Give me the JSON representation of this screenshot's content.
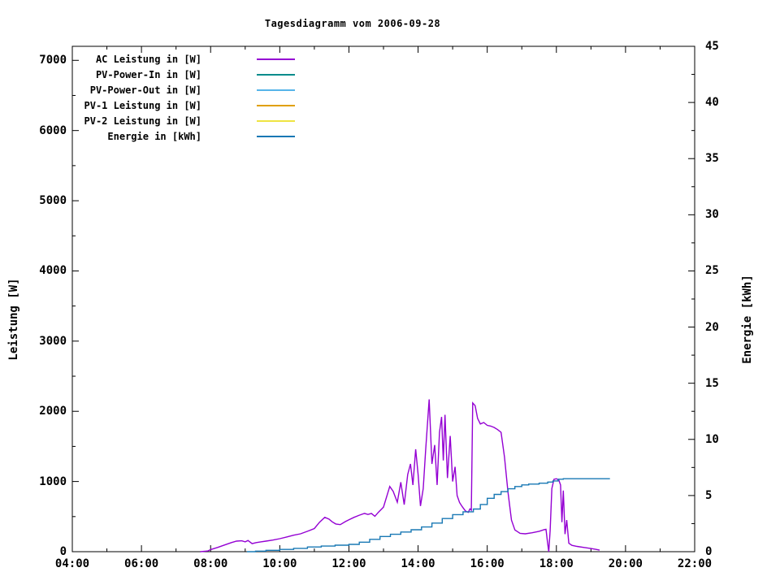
{
  "title": "Tagesdiagramm vom 2006-09-28",
  "colors": {
    "background": "#ffffff",
    "foreground": "#000000",
    "ac_leistung": "#9400d3",
    "pv_power_in": "#008b8b",
    "pv_power_out": "#56b4e9",
    "pv1_leistung": "#e0a000",
    "pv2_leistung": "#efe442",
    "energie": "#1878b4"
  },
  "chart_data": {
    "type": "line",
    "title": "Tagesdiagramm vom 2006-09-28",
    "xlabel": "",
    "ylabel": "Leistung [W]",
    "y2label": "Energie [kWh]",
    "xlim_hours": [
      4,
      22
    ],
    "ylim": [
      0,
      7200
    ],
    "y2lim": [
      0,
      45
    ],
    "grid": false,
    "legend_position": "inside top-left",
    "x_major_ticks": [
      {
        "h": 4,
        "label": "04:00"
      },
      {
        "h": 6,
        "label": "06:00"
      },
      {
        "h": 8,
        "label": "08:00"
      },
      {
        "h": 10,
        "label": "10:00"
      },
      {
        "h": 12,
        "label": "12:00"
      },
      {
        "h": 14,
        "label": "14:00"
      },
      {
        "h": 16,
        "label": "16:00"
      },
      {
        "h": 18,
        "label": "18:00"
      },
      {
        "h": 20,
        "label": "20:00"
      },
      {
        "h": 22,
        "label": "22:00"
      }
    ],
    "x_minor_ticks_hours": [
      5,
      7,
      9,
      11,
      13,
      15,
      17,
      19,
      21
    ],
    "y_major_ticks": [
      {
        "v": 0,
        "label": "0"
      },
      {
        "v": 1000,
        "label": "1000"
      },
      {
        "v": 2000,
        "label": "2000"
      },
      {
        "v": 3000,
        "label": "3000"
      },
      {
        "v": 4000,
        "label": "4000"
      },
      {
        "v": 5000,
        "label": "5000"
      },
      {
        "v": 6000,
        "label": "6000"
      },
      {
        "v": 7000,
        "label": "7000"
      }
    ],
    "y_minor_ticks": [
      500,
      1500,
      2500,
      3500,
      4500,
      5500,
      6500
    ],
    "y2_major_ticks": [
      {
        "v": 0,
        "label": "0"
      },
      {
        "v": 5,
        "label": "5"
      },
      {
        "v": 10,
        "label": "10"
      },
      {
        "v": 15,
        "label": "15"
      },
      {
        "v": 20,
        "label": "20"
      },
      {
        "v": 25,
        "label": "25"
      },
      {
        "v": 30,
        "label": "30"
      },
      {
        "v": 35,
        "label": "35"
      },
      {
        "v": 40,
        "label": "40"
      },
      {
        "v": 45,
        "label": "45"
      }
    ],
    "y2_minor_ticks": [
      2.5,
      7.5,
      12.5,
      17.5,
      22.5,
      27.5,
      32.5,
      37.5,
      42.5
    ],
    "series": [
      {
        "name": "AC Leistung in [W]",
        "color": "#9400d3",
        "axis": "y1",
        "style": "line",
        "visible_in_plot": true,
        "points": [
          [
            7.7,
            0
          ],
          [
            7.92,
            10
          ],
          [
            8.0,
            30
          ],
          [
            8.2,
            60
          ],
          [
            8.4,
            95
          ],
          [
            8.6,
            130
          ],
          [
            8.75,
            150
          ],
          [
            8.9,
            155
          ],
          [
            9.0,
            140
          ],
          [
            9.08,
            160
          ],
          [
            9.2,
            115
          ],
          [
            9.32,
            130
          ],
          [
            9.45,
            140
          ],
          [
            9.6,
            150
          ],
          [
            9.8,
            165
          ],
          [
            10.0,
            185
          ],
          [
            10.2,
            210
          ],
          [
            10.4,
            235
          ],
          [
            10.6,
            255
          ],
          [
            10.8,
            290
          ],
          [
            11.0,
            330
          ],
          [
            11.15,
            420
          ],
          [
            11.3,
            490
          ],
          [
            11.42,
            465
          ],
          [
            11.52,
            425
          ],
          [
            11.62,
            395
          ],
          [
            11.75,
            385
          ],
          [
            11.9,
            430
          ],
          [
            12.0,
            455
          ],
          [
            12.15,
            490
          ],
          [
            12.3,
            520
          ],
          [
            12.45,
            545
          ],
          [
            12.55,
            530
          ],
          [
            12.65,
            545
          ],
          [
            12.75,
            505
          ],
          [
            12.85,
            560
          ],
          [
            13.0,
            635
          ],
          [
            13.1,
            800
          ],
          [
            13.18,
            930
          ],
          [
            13.28,
            860
          ],
          [
            13.4,
            705
          ],
          [
            13.5,
            990
          ],
          [
            13.6,
            670
          ],
          [
            13.7,
            1100
          ],
          [
            13.78,
            1250
          ],
          [
            13.85,
            950
          ],
          [
            13.93,
            1460
          ],
          [
            14.0,
            1100
          ],
          [
            14.07,
            650
          ],
          [
            14.15,
            900
          ],
          [
            14.22,
            1450
          ],
          [
            14.32,
            2170
          ],
          [
            14.4,
            1250
          ],
          [
            14.48,
            1520
          ],
          [
            14.55,
            950
          ],
          [
            14.62,
            1700
          ],
          [
            14.68,
            1920
          ],
          [
            14.73,
            1300
          ],
          [
            14.78,
            1950
          ],
          [
            14.85,
            1050
          ],
          [
            14.93,
            1650
          ],
          [
            15.0,
            1000
          ],
          [
            15.07,
            1210
          ],
          [
            15.13,
            800
          ],
          [
            15.2,
            700
          ],
          [
            15.28,
            640
          ],
          [
            15.37,
            580
          ],
          [
            15.45,
            560
          ],
          [
            15.5,
            610
          ],
          [
            15.54,
            590
          ],
          [
            15.58,
            2120
          ],
          [
            15.65,
            2080
          ],
          [
            15.72,
            1900
          ],
          [
            15.8,
            1820
          ],
          [
            15.9,
            1840
          ],
          [
            16.0,
            1800
          ],
          [
            16.1,
            1790
          ],
          [
            16.2,
            1770
          ],
          [
            16.3,
            1740
          ],
          [
            16.4,
            1700
          ],
          [
            16.5,
            1350
          ],
          [
            16.6,
            850
          ],
          [
            16.7,
            450
          ],
          [
            16.8,
            310
          ],
          [
            16.95,
            260
          ],
          [
            17.1,
            255
          ],
          [
            17.3,
            270
          ],
          [
            17.5,
            290
          ],
          [
            17.65,
            315
          ],
          [
            17.7,
            320
          ],
          [
            17.74,
            150
          ],
          [
            17.78,
            0
          ],
          [
            17.82,
            300
          ],
          [
            17.87,
            900
          ],
          [
            17.93,
            1030
          ],
          [
            18.0,
            1040
          ],
          [
            18.07,
            1020
          ],
          [
            18.12,
            950
          ],
          [
            18.16,
            420
          ],
          [
            18.2,
            870
          ],
          [
            18.25,
            250
          ],
          [
            18.3,
            450
          ],
          [
            18.36,
            120
          ],
          [
            18.45,
            90
          ],
          [
            18.6,
            75
          ],
          [
            18.8,
            60
          ],
          [
            19.0,
            45
          ],
          [
            19.15,
            32
          ],
          [
            19.25,
            22
          ]
        ]
      },
      {
        "name": "PV-Power-In in [W]",
        "color": "#008b8b",
        "axis": "y1",
        "style": "line",
        "visible_in_plot": false,
        "points": []
      },
      {
        "name": "PV-Power-Out in [W]",
        "color": "#56b4e9",
        "axis": "y1",
        "style": "line",
        "visible_in_plot": false,
        "points": []
      },
      {
        "name": "PV-1 Leistung in [W]",
        "color": "#e0a000",
        "axis": "y1",
        "style": "line",
        "visible_in_plot": false,
        "points": []
      },
      {
        "name": "PV-2 Leistung in [W]",
        "color": "#efe442",
        "axis": "y1",
        "style": "line",
        "visible_in_plot": false,
        "points": []
      },
      {
        "name": "Energie in [kWh]",
        "color": "#1878b4",
        "axis": "y2",
        "style": "steps",
        "visible_in_plot": true,
        "points": [
          [
            9.05,
            0
          ],
          [
            9.3,
            0.05
          ],
          [
            9.6,
            0.12
          ],
          [
            10.0,
            0.2
          ],
          [
            10.4,
            0.3
          ],
          [
            10.8,
            0.42
          ],
          [
            11.2,
            0.5
          ],
          [
            11.6,
            0.58
          ],
          [
            12.0,
            0.65
          ],
          [
            12.3,
            0.85
          ],
          [
            12.6,
            1.1
          ],
          [
            12.9,
            1.35
          ],
          [
            13.2,
            1.55
          ],
          [
            13.5,
            1.75
          ],
          [
            13.8,
            1.95
          ],
          [
            14.1,
            2.2
          ],
          [
            14.4,
            2.55
          ],
          [
            14.7,
            2.95
          ],
          [
            15.0,
            3.3
          ],
          [
            15.3,
            3.55
          ],
          [
            15.6,
            3.8
          ],
          [
            15.8,
            4.2
          ],
          [
            16.0,
            4.75
          ],
          [
            16.2,
            5.1
          ],
          [
            16.4,
            5.35
          ],
          [
            16.6,
            5.6
          ],
          [
            16.8,
            5.8
          ],
          [
            17.0,
            5.95
          ],
          [
            17.2,
            6.02
          ],
          [
            17.5,
            6.1
          ],
          [
            17.75,
            6.2
          ],
          [
            17.9,
            6.3
          ],
          [
            18.05,
            6.45
          ],
          [
            18.2,
            6.5
          ],
          [
            18.6,
            6.5
          ],
          [
            19.0,
            6.5
          ],
          [
            19.55,
            6.5
          ]
        ]
      }
    ]
  }
}
